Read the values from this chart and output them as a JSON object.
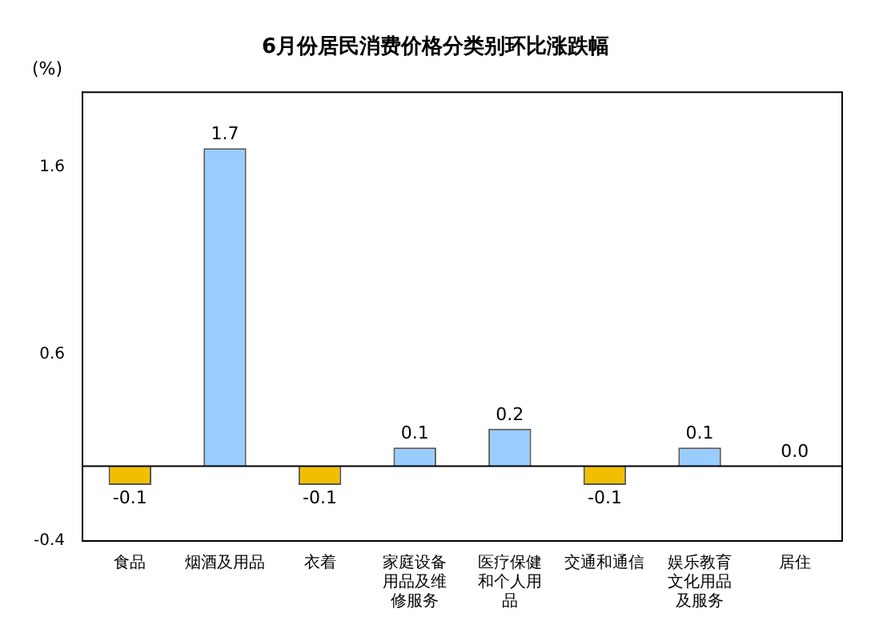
{
  "chart_data": {
    "type": "bar",
    "title": "6月份居民消费价格分类别环比涨跌幅",
    "ylabel": "(%)",
    "categories": [
      "食品",
      "烟酒及用品",
      "衣着",
      "家庭设备用品及维修服务",
      "医疗保健和个人用品",
      "交通和通信",
      "娱乐教育文化用品及服务",
      "居住"
    ],
    "values": [
      -0.1,
      1.7,
      -0.1,
      0.1,
      0.2,
      -0.1,
      0.1,
      0.0
    ],
    "colors": [
      "#f0c000",
      "#99ccff",
      "#f0c000",
      "#99ccff",
      "#99ccff",
      "#f0c000",
      "#99ccff",
      "#99ccff"
    ],
    "value_labels": [
      "-0.1",
      "1.7",
      "-0.1",
      "0.1",
      "0.2",
      "-0.1",
      "0.1",
      "0.0"
    ],
    "ylim": [
      -0.4,
      2.0
    ],
    "yticks": [
      -0.4,
      0.6,
      1.6
    ],
    "grid": false,
    "legend": false
  }
}
